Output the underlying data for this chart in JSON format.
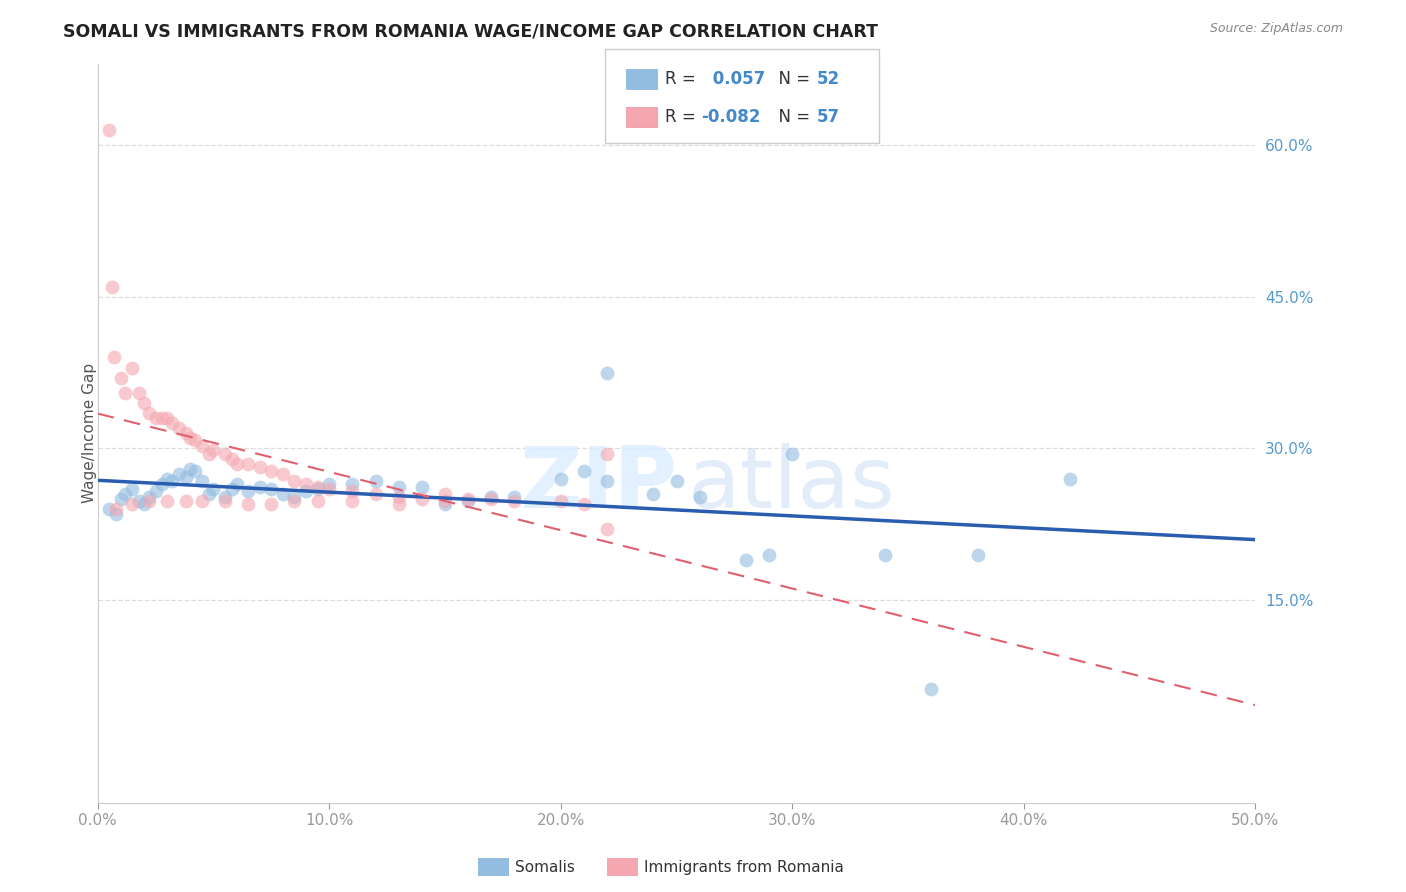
{
  "title": "SOMALI VS IMMIGRANTS FROM ROMANIA WAGE/INCOME GAP CORRELATION CHART",
  "source": "Source: ZipAtlas.com",
  "ylabel": "Wage/Income Gap",
  "x_ticks": [
    0.0,
    0.1,
    0.2,
    0.3,
    0.4,
    0.5
  ],
  "y_ticks_right": [
    0.15,
    0.3,
    0.45,
    0.6
  ],
  "y_tick_labels": [
    "15.0%",
    "30.0%",
    "45.0%",
    "60.0%"
  ],
  "xlim": [
    0.0,
    0.5
  ],
  "ylim": [
    -0.05,
    0.68
  ],
  "somali_R": 0.057,
  "somali_N": 52,
  "romania_R": -0.082,
  "romania_N": 57,
  "somali_color": "#92bce0",
  "romania_color": "#f4a7b0",
  "somali_line_color": "#2a5db0",
  "romania_line_color": "#e06070",
  "somali_x": [
    0.005,
    0.008,
    0.01,
    0.012,
    0.015,
    0.018,
    0.02,
    0.022,
    0.025,
    0.028,
    0.03,
    0.032,
    0.035,
    0.038,
    0.04,
    0.042,
    0.045,
    0.048,
    0.05,
    0.055,
    0.058,
    0.06,
    0.065,
    0.07,
    0.075,
    0.08,
    0.085,
    0.09,
    0.095,
    0.1,
    0.11,
    0.12,
    0.13,
    0.14,
    0.15,
    0.16,
    0.17,
    0.18,
    0.2,
    0.21,
    0.22,
    0.24,
    0.25,
    0.26,
    0.28,
    0.29,
    0.3,
    0.34,
    0.36,
    0.38,
    0.42,
    0.22
  ],
  "somali_y": [
    0.24,
    0.235,
    0.25,
    0.255,
    0.26,
    0.248,
    0.245,
    0.252,
    0.258,
    0.265,
    0.27,
    0.268,
    0.275,
    0.272,
    0.28,
    0.278,
    0.268,
    0.255,
    0.26,
    0.252,
    0.26,
    0.265,
    0.258,
    0.262,
    0.26,
    0.255,
    0.252,
    0.258,
    0.26,
    0.265,
    0.265,
    0.268,
    0.262,
    0.262,
    0.245,
    0.248,
    0.252,
    0.252,
    0.27,
    0.278,
    0.268,
    0.255,
    0.268,
    0.252,
    0.19,
    0.195,
    0.295,
    0.195,
    0.062,
    0.195,
    0.27,
    0.375
  ],
  "romania_x": [
    0.005,
    0.006,
    0.007,
    0.01,
    0.012,
    0.015,
    0.018,
    0.02,
    0.022,
    0.025,
    0.028,
    0.03,
    0.032,
    0.035,
    0.038,
    0.04,
    0.042,
    0.045,
    0.048,
    0.05,
    0.055,
    0.058,
    0.06,
    0.065,
    0.07,
    0.075,
    0.08,
    0.085,
    0.09,
    0.095,
    0.1,
    0.11,
    0.12,
    0.13,
    0.14,
    0.15,
    0.16,
    0.17,
    0.18,
    0.2,
    0.21,
    0.22,
    0.008,
    0.015,
    0.022,
    0.03,
    0.038,
    0.045,
    0.055,
    0.065,
    0.075,
    0.085,
    0.095,
    0.11,
    0.13,
    0.15,
    0.22
  ],
  "romania_y": [
    0.615,
    0.46,
    0.39,
    0.37,
    0.355,
    0.38,
    0.355,
    0.345,
    0.335,
    0.33,
    0.33,
    0.33,
    0.325,
    0.32,
    0.315,
    0.31,
    0.308,
    0.302,
    0.295,
    0.298,
    0.295,
    0.29,
    0.285,
    0.285,
    0.282,
    0.278,
    0.275,
    0.268,
    0.265,
    0.262,
    0.26,
    0.258,
    0.255,
    0.252,
    0.25,
    0.255,
    0.25,
    0.25,
    0.248,
    0.248,
    0.245,
    0.295,
    0.24,
    0.245,
    0.248,
    0.248,
    0.248,
    0.248,
    0.248,
    0.245,
    0.245,
    0.248,
    0.248,
    0.248,
    0.245,
    0.248,
    0.22
  ]
}
